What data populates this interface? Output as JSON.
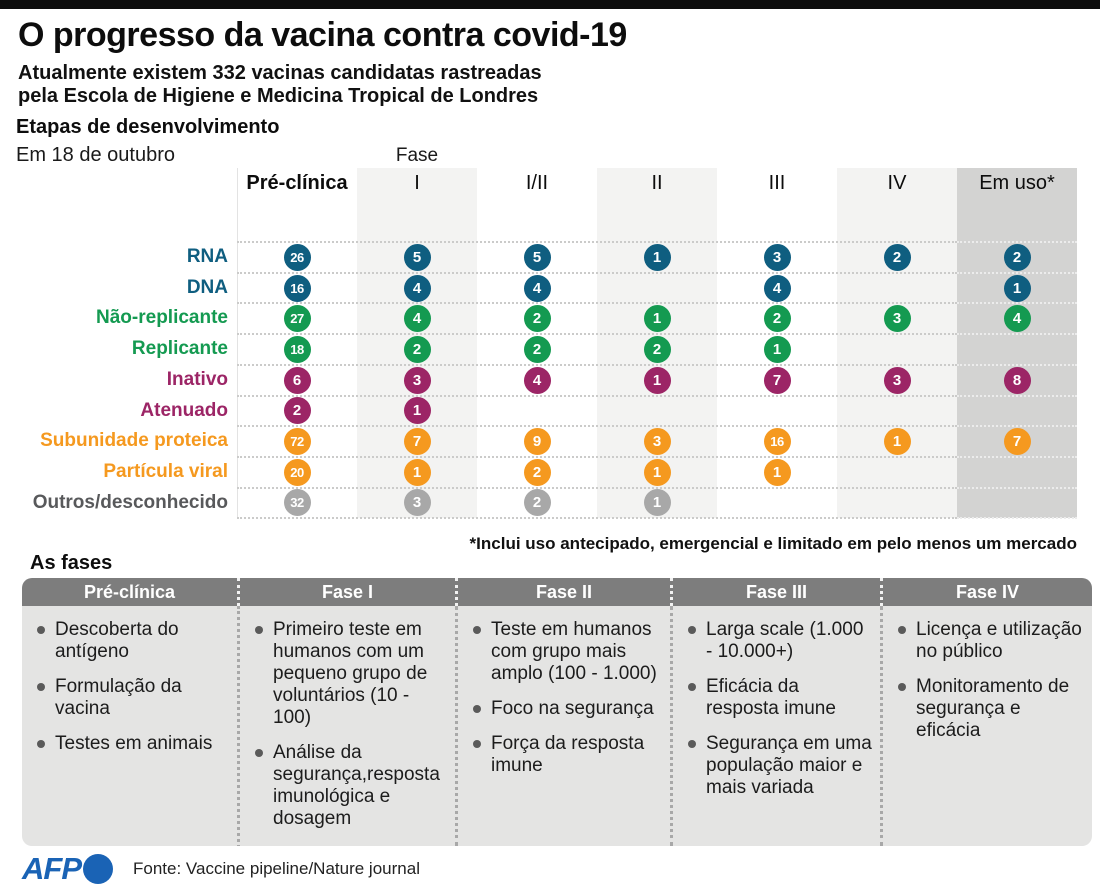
{
  "header": {
    "title": "O progresso da vacina contra covid-19",
    "subtitle_line1": "Atualmente existem 332 vacinas candidatas rastreadas",
    "subtitle_line2": "pela Escola de Higiene e Medicina Tropical de Londres",
    "section_title": "Etapas de desenvolvimento",
    "date": "Em 18 de outubro"
  },
  "chart_data": {
    "type": "table",
    "title": "Etapas de desenvolvimento",
    "phase_axis_label": "Fase",
    "columns": [
      "Pré-clínica",
      "I",
      "I/II",
      "II",
      "III",
      "IV",
      "Em uso*"
    ],
    "rows": [
      {
        "label": "RNA",
        "color": "#0f5e80",
        "values": [
          26,
          5,
          5,
          1,
          3,
          2,
          2
        ]
      },
      {
        "label": "DNA",
        "color": "#0f5e80",
        "values": [
          16,
          4,
          4,
          null,
          4,
          null,
          1
        ]
      },
      {
        "label": "Não-replicante",
        "color": "#149a51",
        "values": [
          27,
          4,
          2,
          1,
          2,
          3,
          4
        ]
      },
      {
        "label": "Replicante",
        "color": "#149a51",
        "values": [
          18,
          2,
          2,
          2,
          1,
          null,
          null
        ]
      },
      {
        "label": "Inativo",
        "color": "#9c2566",
        "values": [
          6,
          3,
          4,
          1,
          7,
          3,
          8
        ]
      },
      {
        "label": "Atenuado",
        "color": "#9c2566",
        "values": [
          2,
          1,
          null,
          null,
          null,
          null,
          null
        ]
      },
      {
        "label": "Subunidade proteica",
        "color": "#f5991f",
        "values": [
          72,
          7,
          9,
          3,
          16,
          1,
          7
        ]
      },
      {
        "label": "Partícula viral",
        "color": "#f5991f",
        "values": [
          20,
          1,
          2,
          1,
          1,
          null,
          null
        ]
      },
      {
        "label": "Outros/desconhecido",
        "color": "#a8a8a8",
        "label_color": "#58595b",
        "values": [
          32,
          3,
          2,
          1,
          null,
          null,
          null
        ]
      }
    ],
    "footnote": "*Inclui uso antecipado, emergencial e limitado em pelo menos um mercado",
    "highlight_columns_light": [
      "I",
      "II",
      "IV"
    ],
    "highlight_column_dark": "Em uso*"
  },
  "phases_section": {
    "heading": "As fases",
    "columns": [
      {
        "title": "Pré-clínica",
        "bullets": [
          "Descoberta do antígeno",
          "Formulação da vacina",
          "Testes em animais"
        ]
      },
      {
        "title": "Fase I",
        "bullets": [
          "Primeiro teste em humanos com um pequeno grupo de voluntários (10 - 100)",
          "Análise da segurança,resposta imunológica e dosagem"
        ]
      },
      {
        "title": "Fase II",
        "bullets": [
          "Teste em humanos com grupo mais amplo (100 - 1.000)",
          "Foco na segurança",
          "Força da resposta imune"
        ]
      },
      {
        "title": "Fase III",
        "bullets": [
          "Larga scale (1.000 - 10.000+)",
          "Eficácia da resposta imune",
          "Segurança em uma população maior e mais variada"
        ]
      },
      {
        "title": "Fase IV",
        "bullets": [
          "Licença e utilização no público",
          "Monitoramento de segurança e eficácia"
        ]
      }
    ]
  },
  "footer": {
    "logo": "AFP",
    "source": "Fonte: Vaccine pipeline/Nature journal"
  },
  "colors": {
    "rna_dna_blue": "#0f5e80",
    "viral_vector_green": "#149a51",
    "inactivated_magenta": "#9c2566",
    "protein_orange": "#f5991f",
    "other_gray": "#a8a8a8",
    "band_light": "#f3f3f2",
    "band_dark": "#d3d3d2",
    "panel_header_gray": "#7d7d7d",
    "panel_body_gray": "#e4e4e3",
    "afp_blue": "#1a63b5"
  }
}
